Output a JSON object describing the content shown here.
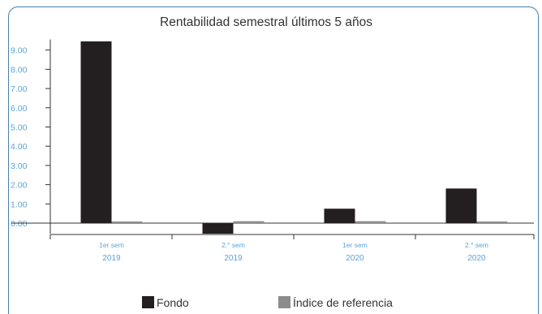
{
  "chart_data": {
    "type": "bar",
    "title": "Rentabilidad semestral últimos 5 años",
    "categories": [
      {
        "line1": "1er sem",
        "line2": "2019"
      },
      {
        "line1": "2.° sem",
        "line2": "2019"
      },
      {
        "line1": "1er sem",
        "line2": "2020"
      },
      {
        "line1": "2.° sem",
        "line2": "2020"
      }
    ],
    "series": [
      {
        "name": "Fondo",
        "color": "#231f20",
        "values": [
          9.45,
          -0.55,
          0.75,
          1.8
        ]
      },
      {
        "name": "Índice de referencia",
        "color": "#8c8c8c",
        "values": [
          0.05,
          0.1,
          0.1,
          0.04
        ]
      }
    ],
    "yticks": [
      "0.00",
      "1.00",
      "2.00",
      "3.00",
      "4.00",
      "5.00",
      "6.00",
      "7.00",
      "8.00",
      "9.00"
    ],
    "ylim": [
      -0.55,
      9.55
    ],
    "grid": false,
    "legend_position": "bottom"
  }
}
